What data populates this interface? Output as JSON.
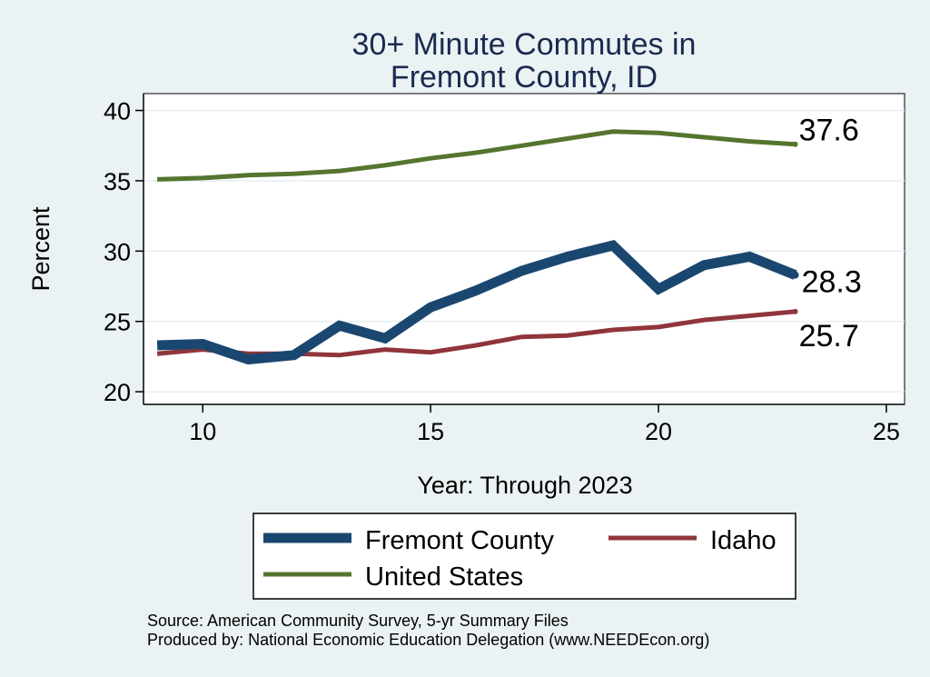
{
  "chart_data": {
    "type": "line",
    "title": [
      "30+ Minute Commutes in",
      "Fremont County, ID"
    ],
    "xlabel": "Year: Through 2023",
    "ylabel": "Percent",
    "xlim": [
      8.7,
      25.4
    ],
    "ylim": [
      19.1,
      41.2
    ],
    "xticks": [
      10,
      15,
      20,
      25
    ],
    "yticks": [
      20,
      25,
      30,
      35,
      40
    ],
    "grid": "horizontal",
    "legend_position": "bottom",
    "x": [
      9,
      10,
      11,
      12,
      13,
      14,
      15,
      16,
      17,
      18,
      19,
      20,
      21,
      22,
      23
    ],
    "series": [
      {
        "name": "Fremont County",
        "color": "#1a476f",
        "width": 11,
        "values": [
          23.3,
          23.4,
          22.3,
          22.6,
          24.7,
          23.8,
          26.0,
          27.2,
          28.6,
          29.6,
          30.4,
          27.3,
          29.0,
          29.6,
          28.3
        ],
        "end_label": "28.3"
      },
      {
        "name": "Idaho",
        "color": "#90353b",
        "width": 5,
        "values": [
          22.7,
          23.0,
          22.7,
          22.7,
          22.6,
          23.0,
          22.8,
          23.3,
          23.9,
          24.0,
          24.4,
          24.6,
          25.1,
          25.4,
          25.7
        ],
        "end_label": "25.7"
      },
      {
        "name": "United States",
        "color": "#55752f",
        "width": 5,
        "values": [
          35.1,
          35.2,
          35.4,
          35.5,
          35.7,
          36.1,
          36.6,
          37.0,
          37.5,
          38.0,
          38.5,
          38.4,
          38.1,
          37.8,
          37.6
        ],
        "end_label": "37.6"
      }
    ]
  },
  "notes": {
    "source": "Source: American Community Survey, 5-yr Summary Files",
    "produced": "Produced by: National Economic Education Delegation (www.NEEDEcon.org)"
  }
}
